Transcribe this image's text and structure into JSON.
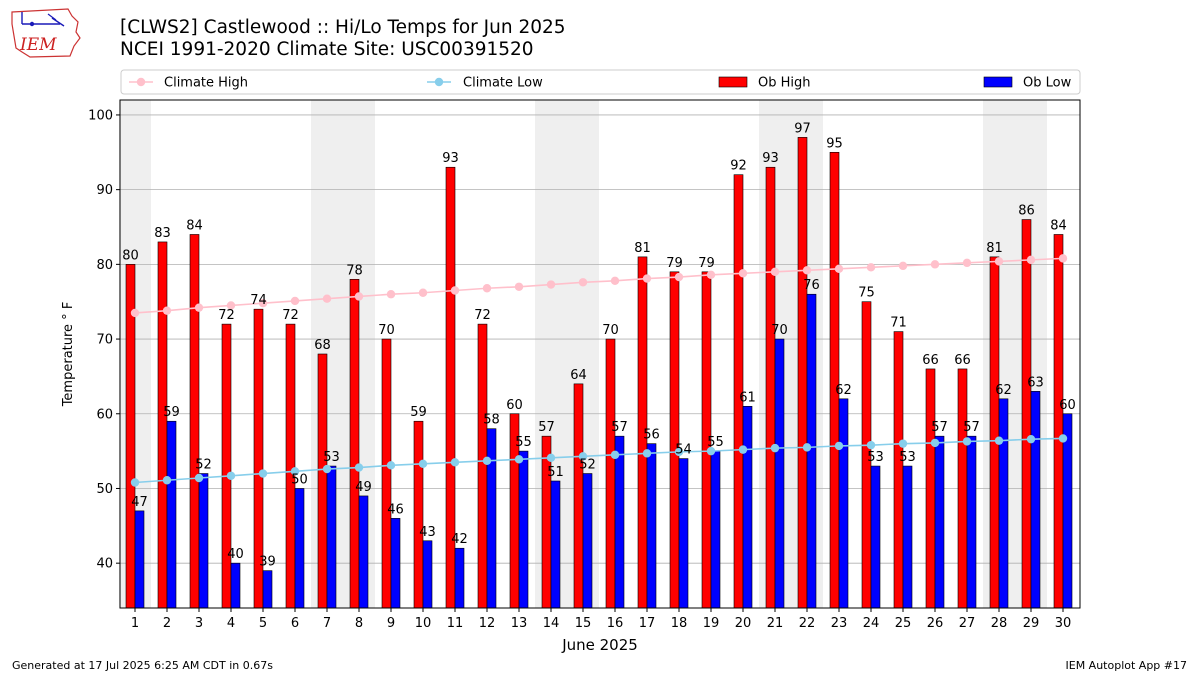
{
  "logo": {
    "text": "IEM"
  },
  "title": {
    "line1": "[CLWS2] Castlewood :: Hi/Lo Temps for Jun 2025",
    "line2": "NCEI 1991-2020 Climate Site: USC00391520"
  },
  "footer": {
    "left": "Generated at 17 Jul 2025 6:25 AM CDT in 0.67s",
    "right": "IEM Autoplot App #17"
  },
  "colors": {
    "ob_high": "#ff0000",
    "ob_low": "#0000ff",
    "climate_high": "#ffc0cb",
    "climate_low": "#87ceeb",
    "weekend_band": "#efefef",
    "grid": "#b0b0b0"
  },
  "chart_data": {
    "type": "bar",
    "xlabel": "June 2025",
    "ylabel": "Temperature ° F",
    "ylim": [
      34,
      102
    ],
    "yticks": [
      40,
      50,
      60,
      70,
      80,
      90,
      100
    ],
    "grid": "horizontal",
    "legend_position": "top",
    "categories": [
      "1",
      "2",
      "3",
      "4",
      "5",
      "6",
      "7",
      "8",
      "9",
      "10",
      "11",
      "12",
      "13",
      "14",
      "15",
      "16",
      "17",
      "18",
      "19",
      "20",
      "21",
      "22",
      "23",
      "24",
      "25",
      "26",
      "27",
      "28",
      "29",
      "30"
    ],
    "shaded_days": [
      1,
      7,
      8,
      14,
      15,
      21,
      22,
      28,
      29
    ],
    "series": [
      {
        "name": "Climate High",
        "kind": "line",
        "values": [
          73.5,
          73.8,
          74.2,
          74.5,
          74.8,
          75.1,
          75.4,
          75.7,
          76.0,
          76.2,
          76.5,
          76.8,
          77.0,
          77.3,
          77.6,
          77.8,
          78.1,
          78.3,
          78.6,
          78.8,
          79.0,
          79.2,
          79.4,
          79.6,
          79.8,
          80.0,
          80.2,
          80.4,
          80.6,
          80.8
        ],
        "color": "#ffc0cb"
      },
      {
        "name": "Climate Low",
        "kind": "line",
        "values": [
          50.8,
          51.1,
          51.4,
          51.7,
          52.0,
          52.3,
          52.6,
          52.8,
          53.1,
          53.3,
          53.5,
          53.7,
          53.9,
          54.1,
          54.3,
          54.5,
          54.7,
          54.9,
          55.0,
          55.2,
          55.4,
          55.5,
          55.7,
          55.8,
          56.0,
          56.1,
          56.3,
          56.4,
          56.6,
          56.7
        ],
        "color": "#87ceeb"
      },
      {
        "name": "Ob High",
        "kind": "bar",
        "values": [
          80,
          83,
          84,
          72,
          74,
          72,
          68,
          78,
          70,
          59,
          93,
          72,
          60,
          57,
          64,
          70,
          81,
          79,
          79,
          92,
          93,
          97,
          95,
          75,
          71,
          66,
          66,
          81,
          86,
          84
        ],
        "color": "#ff0000"
      },
      {
        "name": "Ob Low",
        "kind": "bar",
        "values": [
          47,
          59,
          52,
          40,
          39,
          50,
          53,
          49,
          46,
          43,
          42,
          58,
          55,
          51,
          52,
          57,
          56,
          54,
          55,
          61,
          70,
          76,
          62,
          53,
          53,
          57,
          57,
          62,
          63,
          60
        ],
        "color": "#0000ff"
      }
    ]
  }
}
